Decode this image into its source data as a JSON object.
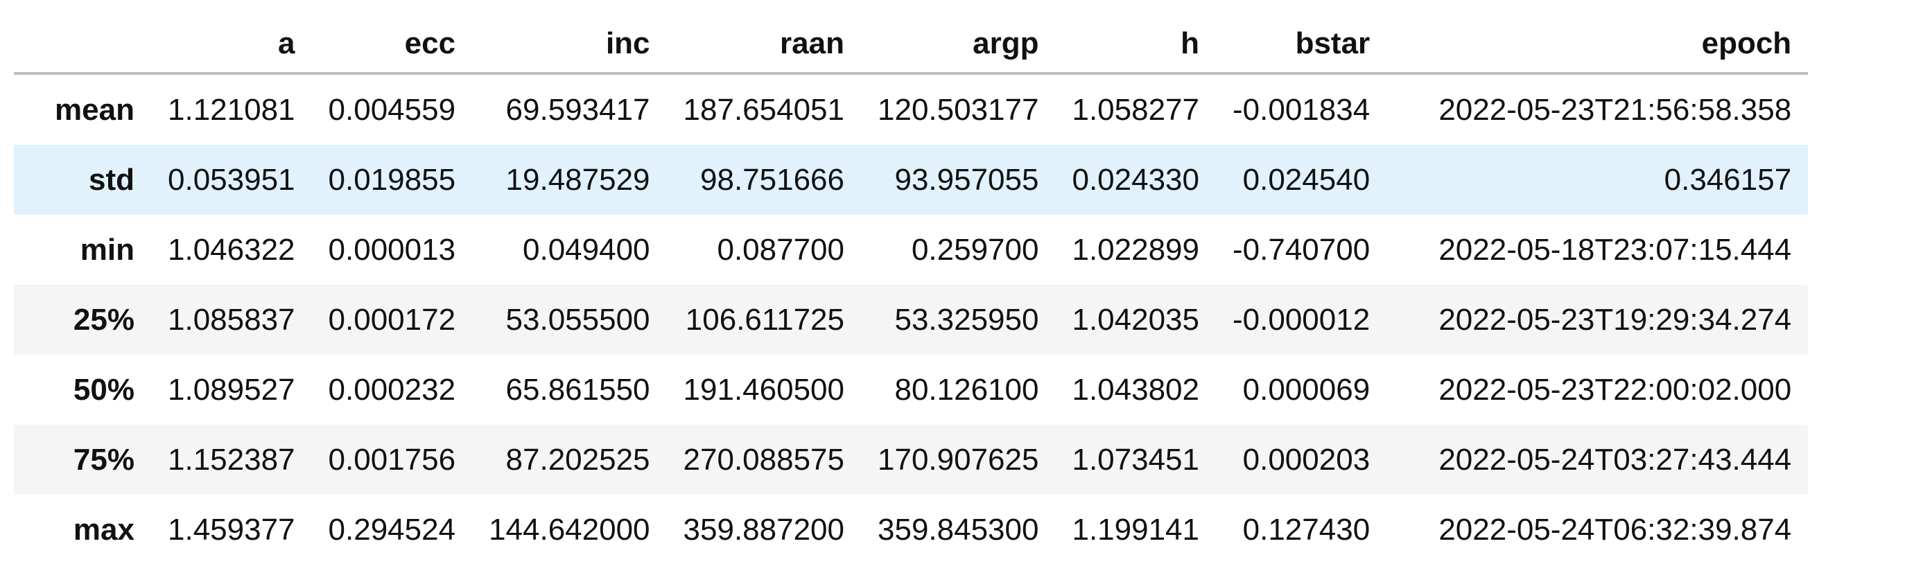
{
  "table": {
    "columns": [
      "",
      "a",
      "ecc",
      "inc",
      "raan",
      "argp",
      "h",
      "bstar",
      "epoch"
    ],
    "rows": [
      {
        "label": "mean",
        "cells": [
          "1.121081",
          "0.004559",
          "69.593417",
          "187.654051",
          "120.503177",
          "1.058277",
          "-0.001834",
          "2022-05-23T21:56:58.358"
        ]
      },
      {
        "label": "std",
        "cells": [
          "0.053951",
          "0.019855",
          "19.487529",
          "98.751666",
          "93.957055",
          "0.024330",
          "0.024540",
          "0.346157"
        ]
      },
      {
        "label": "min",
        "cells": [
          "1.046322",
          "0.000013",
          "0.049400",
          "0.087700",
          "0.259700",
          "1.022899",
          "-0.740700",
          "2022-05-18T23:07:15.444"
        ]
      },
      {
        "label": "25%",
        "cells": [
          "1.085837",
          "0.000172",
          "53.055500",
          "106.611725",
          "53.325950",
          "1.042035",
          "-0.000012",
          "2022-05-23T19:29:34.274"
        ]
      },
      {
        "label": "50%",
        "cells": [
          "1.089527",
          "0.000232",
          "65.861550",
          "191.460500",
          "80.126100",
          "1.043802",
          "0.000069",
          "2022-05-23T22:00:02.000"
        ]
      },
      {
        "label": "75%",
        "cells": [
          "1.152387",
          "0.001756",
          "87.202525",
          "270.088575",
          "170.907625",
          "1.073451",
          "0.000203",
          "2022-05-24T03:27:43.444"
        ]
      },
      {
        "label": "max",
        "cells": [
          "1.459377",
          "0.294524",
          "144.642000",
          "359.887200",
          "359.845300",
          "1.199141",
          "0.127430",
          "2022-05-24T06:32:39.874"
        ]
      }
    ]
  },
  "colors": {
    "row_even": "#f5f5f5",
    "row_hover": "#e1f2fd",
    "header_border": "#bdbdbd"
  }
}
